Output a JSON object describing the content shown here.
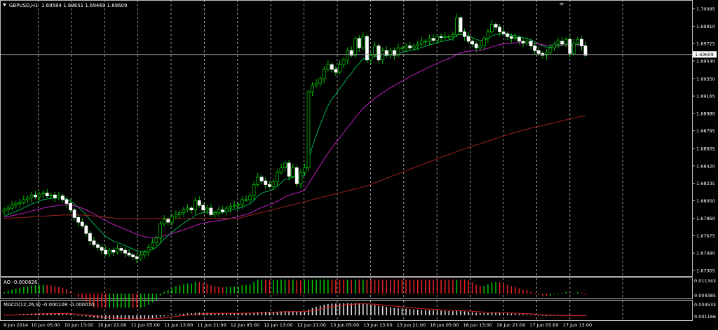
{
  "header": {
    "symbol": "GBPUSD,H1",
    "ohlc": "1.69584 1.69651 1.69469 1.69609"
  },
  "chart_data": {
    "type": "candlestick",
    "symbol": "GBPUSD,H1",
    "price_ticks": [
      "1.70095",
      "1.69910",
      "1.69725",
      "1.69540",
      "1.69350",
      "1.69165",
      "1.68980",
      "1.68795",
      "1.68605",
      "1.68420",
      "1.68235",
      "1.68050",
      "1.67860",
      "1.67675",
      "1.67490",
      "1.67305"
    ],
    "price_range": [
      1.6726,
      1.7016
    ],
    "current_price": "1.69609",
    "time_labels": [
      "9 Jun 2014",
      "10 Jun 05:00",
      "10 Jun 13:00",
      "10 Jun 21:00",
      "11 Jun 05:00",
      "11 Jun 13:00",
      "11 Jun 21:00",
      "12 Jun 05:00",
      "12 Jun 13:00",
      "12 Jun 21:00",
      "13 Jun 05:00",
      "13 Jun 13:00",
      "13 Jun 21:00",
      "16 Jun 05:00",
      "16 Jun 13:00",
      "16 Jun 21:00",
      "17 Jun 05:00",
      "17 Jun 13:00"
    ],
    "candles_close": [
      1.6795,
      1.6797,
      1.68,
      1.6802,
      1.6803,
      1.6806,
      1.6808,
      1.6811,
      1.6809,
      1.6812,
      1.6813,
      1.681,
      1.6811,
      1.6808,
      1.681,
      1.6806,
      1.6802,
      1.6795,
      1.6787,
      1.6782,
      1.6778,
      1.677,
      1.6762,
      1.6758,
      1.6755,
      1.6752,
      1.6748,
      1.6752,
      1.675,
      1.6754,
      1.6752,
      1.6749,
      1.6747,
      1.6745,
      1.6743,
      1.6747,
      1.675,
      1.6755,
      1.676,
      1.6765,
      1.678,
      1.6785,
      1.6782,
      1.6788,
      1.679,
      1.6792,
      1.6795,
      1.6797,
      1.6795,
      1.6805,
      1.68,
      1.6795,
      1.6797,
      1.679,
      1.6792,
      1.6795,
      1.6793,
      1.6797,
      1.6799,
      1.68,
      1.6801,
      1.6806,
      1.6806,
      1.681,
      1.6822,
      1.683,
      1.6826,
      1.6822,
      1.682,
      1.6825,
      1.6835,
      1.684,
      1.6845,
      1.6831,
      1.684,
      1.6823,
      1.6835,
      1.684,
      1.6921,
      1.6928,
      1.693,
      1.6935,
      1.6945,
      1.695,
      1.6945,
      1.6942,
      1.695,
      1.6955,
      1.6965,
      1.696,
      1.6978,
      1.6968,
      1.698,
      1.6955,
      1.696,
      1.697,
      1.6955,
      1.6965,
      1.696,
      1.6965,
      1.696,
      1.6968,
      1.6968,
      1.697,
      1.6968,
      1.697,
      1.6972,
      1.6975,
      1.6975,
      1.6978,
      1.6976,
      1.698,
      1.6979,
      1.698,
      1.698,
      1.6982,
      1.7,
      1.6985,
      1.698,
      1.6975,
      1.6972,
      1.6968,
      1.697,
      1.6978,
      1.6985,
      1.6993,
      1.699,
      1.6985,
      1.6983,
      1.698,
      1.6978,
      1.6979,
      1.6975,
      1.6973,
      1.6975,
      1.697,
      1.6965,
      1.6962,
      1.696,
      1.6963,
      1.6968,
      1.6972,
      1.6975,
      1.6972,
      1.6977,
      1.6962,
      1.6973,
      1.6977,
      1.697,
      1.696
    ]
  },
  "indicators": {
    "ao_label": "AO -0.000626",
    "ao_ticks": [
      "0.011343",
      "0.004385"
    ],
    "macd_label": "MACD(12,26,9) -0.000108 -0.000010",
    "macd_ticks": [
      "0.004533",
      "0.001166"
    ]
  },
  "colors": {
    "background": "#000000",
    "grid": "#c0c0c0",
    "bull": "#00c000",
    "bear": "#ffffff",
    "ma_fast": "#00b050",
    "ma_mid": "#c020c0",
    "ma_slow": "#a02020"
  }
}
